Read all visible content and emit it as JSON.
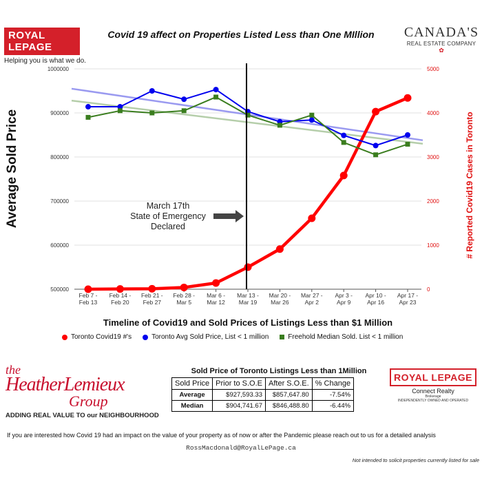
{
  "branding": {
    "royal_lepage": "ROYAL LEPAGE",
    "tagline": "Helping you is what we do.",
    "canada_main": "CANADA'S",
    "canada_sub": "REAL ESTATE COMPANY",
    "heather_the": "the",
    "heather_name": "HeatherLemieux",
    "heather_group": "Group",
    "heather_tagline": "ADDING REAL VALUE TO our NEIGHBOURHOOD",
    "rlp2": "ROYAL LEPAGE",
    "rlp2_sub": "Connect Realty",
    "rlp2_brokerage": "Brokerage",
    "rlp2_small": "INDEPENDENTLY OWNED AND OPERATED"
  },
  "colors": {
    "covid": "#ff0000",
    "avg_price": "#0000ee",
    "median": "#3a7d1e",
    "avg_trend": "#9a9af0",
    "median_trend": "#b5ceaa",
    "brand_red": "#d4202a"
  },
  "chart_data": {
    "type": "line",
    "title": "Covid 19 affect on Properties Listed Less than One MIllion",
    "xlabel": "Timeline of Covid19 and Sold Prices of Listings Less than $1 Million",
    "ylabel_left": "Average Sold Price",
    "ylabel_right": "# Reported Covid19 Cases in Toronto",
    "categories": [
      [
        "Feb 7 -",
        "Feb 13"
      ],
      [
        "Feb 14 -",
        "Feb 20"
      ],
      [
        "Feb 21 -",
        "Feb 27"
      ],
      [
        "Feb 28 -",
        "Mar 5"
      ],
      [
        "Mar 6 -",
        "Mar 12"
      ],
      [
        "Mar 13 -",
        "Mar 19"
      ],
      [
        "Mar 20 -",
        "Mar 26"
      ],
      [
        "Mar 27 -",
        "Apr 2"
      ],
      [
        "Apr 3 -",
        "Apr 9"
      ],
      [
        "Apr 10 -",
        "Apr 16"
      ],
      [
        "Apr 17 -",
        "Apr 23"
      ]
    ],
    "ylim_left": [
      500000,
      1000000
    ],
    "yticks_left": [
      "500000",
      "600000",
      "700000",
      "800000",
      "900000",
      "1000000"
    ],
    "ylim_right": [
      0,
      5000
    ],
    "yticks_right": [
      "0",
      "1000",
      "2000",
      "3000",
      "4000",
      "5000"
    ],
    "series": [
      {
        "name": "Toronto  Covid19 #'s",
        "axis": "right",
        "marker": "circle",
        "values": [
          0,
          5,
          10,
          40,
          140,
          500,
          910,
          1610,
          2580,
          4030,
          4340
        ]
      },
      {
        "name": "Toronto Avg Sold Price, List < 1 million",
        "axis": "left",
        "marker": "circle",
        "values": [
          914000,
          914000,
          950000,
          931000,
          953000,
          903000,
          880000,
          884000,
          849000,
          826000,
          850000
        ]
      },
      {
        "name": "Freehold Median Sold. List < 1 million",
        "axis": "left",
        "marker": "square",
        "values": [
          890000,
          905000,
          900000,
          905000,
          936000,
          895000,
          872000,
          895000,
          833000,
          805000,
          829000
        ]
      }
    ],
    "trendlines": [
      {
        "series": "avg",
        "start": 955000,
        "end": 838000
      },
      {
        "series": "median",
        "start": 928000,
        "end": 830000
      }
    ],
    "event": {
      "after_category": 5,
      "label": [
        "March 17th",
        "State of Emergency",
        "Declared"
      ]
    }
  },
  "summary_table": {
    "title": "Sold Price of Toronto Listings Less than 1Million",
    "headers": [
      "Sold Price",
      "Prior to S.O.E",
      "After S.O.E.",
      "% Change"
    ],
    "rows": [
      {
        "label": "Average",
        "prior": "$927,593.33",
        "after": "$857,647.80",
        "change": "-7.54%"
      },
      {
        "label": "Median",
        "prior": "$904,741.67",
        "after": "$846,488.80",
        "change": "-6.44%"
      }
    ]
  },
  "footer": {
    "cta": "If you are interested how Covid 19 had an impact on the value of your property as of now or after the Pandemic please reach out to us for a detailed analysis",
    "email": "RossMacdonald@RoyalLePage.ca",
    "disclaimer": "Not intended to solicit properties currently listed for sale"
  }
}
